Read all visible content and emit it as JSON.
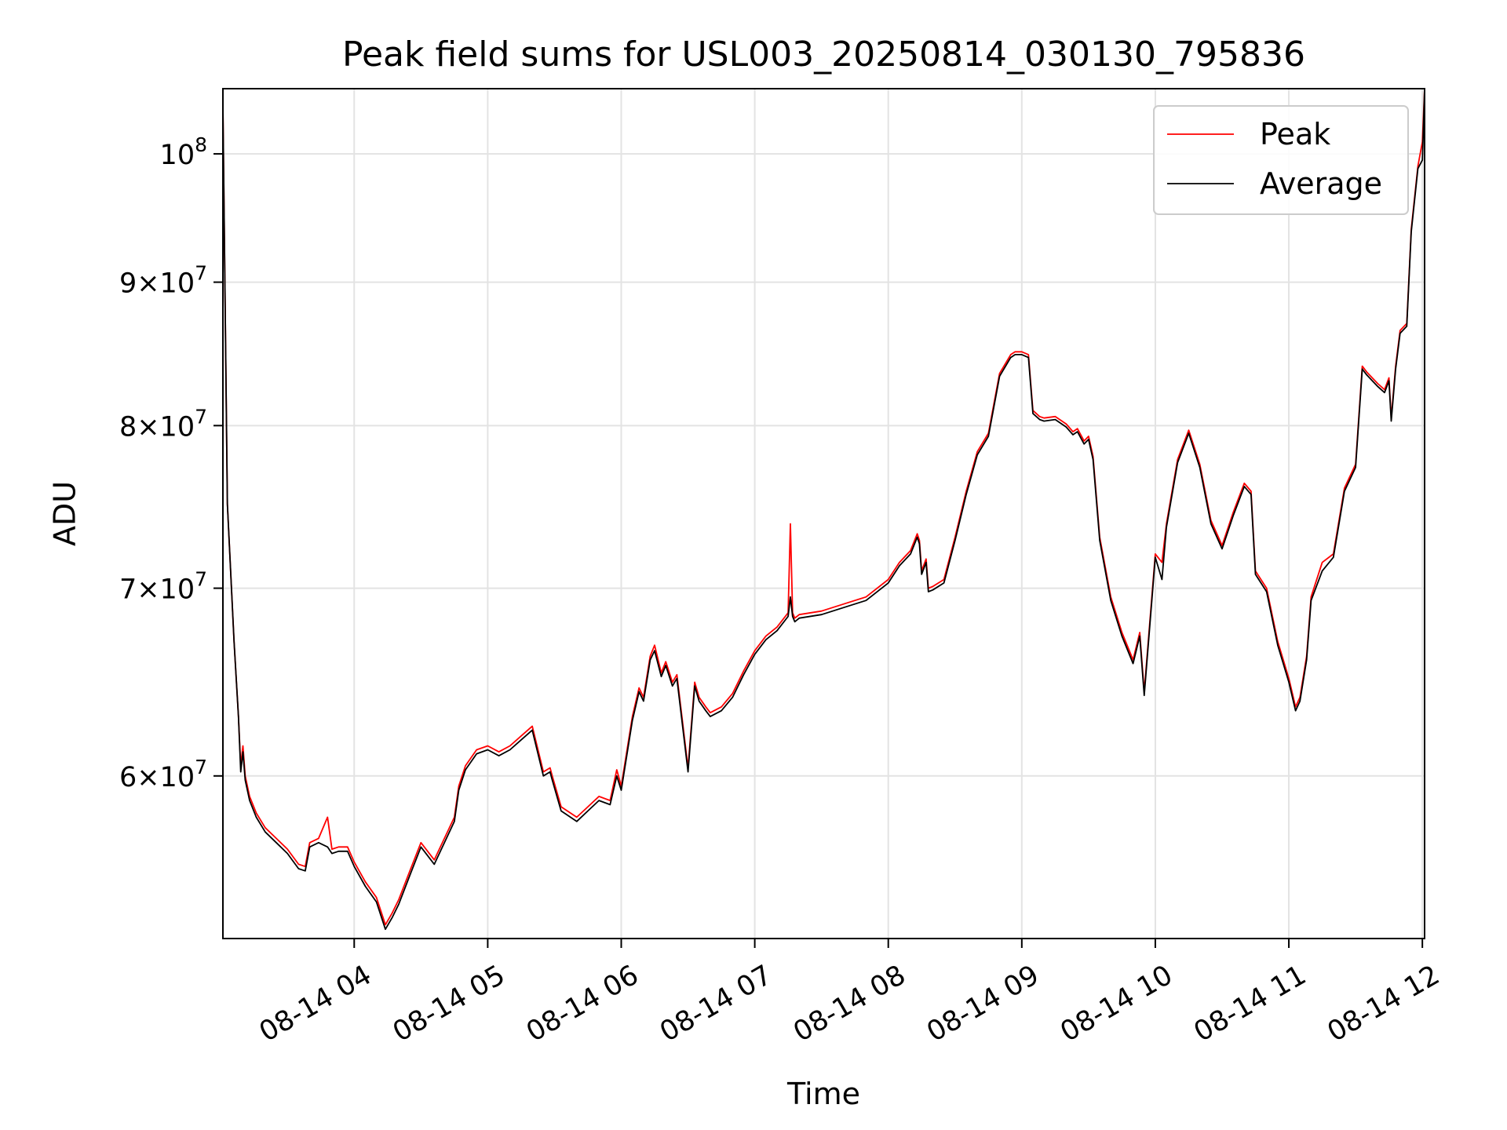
{
  "chart_data": {
    "type": "line",
    "title": "Peak field sums for USL003_20250814_030130_795836",
    "xlabel": "Time",
    "ylabel": "ADU",
    "yscale": "log",
    "grid": true,
    "legend_position": "top-right",
    "xlim": [
      "2025-08-14 03:01",
      "2025-08-14 12:01"
    ],
    "ylim": [
      52500000,
      105500000
    ],
    "x_ticks": [
      "08-14 04",
      "08-14 05",
      "08-14 06",
      "08-14 07",
      "08-14 08",
      "08-14 09",
      "08-14 10",
      "08-14 11",
      "08-14 12"
    ],
    "x_tick_values": [
      "2025-08-14 04:00",
      "2025-08-14 05:00",
      "2025-08-14 06:00",
      "2025-08-14 07:00",
      "2025-08-14 08:00",
      "2025-08-14 09:00",
      "2025-08-14 10:00",
      "2025-08-14 11:00",
      "2025-08-14 12:00"
    ],
    "y_ticks": [
      {
        "value": 60000000,
        "mant": "6",
        "sym": "×",
        "base": "10",
        "exp": "7"
      },
      {
        "value": 70000000,
        "mant": "7",
        "sym": "×",
        "base": "10",
        "exp": "7"
      },
      {
        "value": 80000000,
        "mant": "8",
        "sym": "×",
        "base": "10",
        "exp": "7"
      },
      {
        "value": 90000000,
        "mant": "9",
        "sym": "×",
        "base": "10",
        "exp": "7"
      },
      {
        "value": 100000000,
        "mant": "",
        "sym": "",
        "base": "10",
        "exp": "8"
      }
    ],
    "x": [
      "2025-08-14 03:01",
      "2025-08-14 03:03",
      "2025-08-14 03:06",
      "2025-08-14 03:08",
      "2025-08-14 03:09",
      "2025-08-14 03:10",
      "2025-08-14 03:11",
      "2025-08-14 03:13",
      "2025-08-14 03:16",
      "2025-08-14 03:20",
      "2025-08-14 03:25",
      "2025-08-14 03:30",
      "2025-08-14 03:35",
      "2025-08-14 03:38",
      "2025-08-14 03:40",
      "2025-08-14 03:44",
      "2025-08-14 03:48",
      "2025-08-14 03:50",
      "2025-08-14 03:53",
      "2025-08-14 03:57",
      "2025-08-14 04:00",
      "2025-08-14 04:05",
      "2025-08-14 04:10",
      "2025-08-14 04:14",
      "2025-08-14 04:17",
      "2025-08-14 04:20",
      "2025-08-14 04:25",
      "2025-08-14 04:30",
      "2025-08-14 04:36",
      "2025-08-14 04:45",
      "2025-08-14 04:47",
      "2025-08-14 04:50",
      "2025-08-14 04:55",
      "2025-08-14 05:00",
      "2025-08-14 05:05",
      "2025-08-14 05:10",
      "2025-08-14 05:15",
      "2025-08-14 05:20",
      "2025-08-14 05:25",
      "2025-08-14 05:28",
      "2025-08-14 05:29",
      "2025-08-14 05:33",
      "2025-08-14 05:40",
      "2025-08-14 05:45",
      "2025-08-14 05:50",
      "2025-08-14 05:55",
      "2025-08-14 05:58",
      "2025-08-14 06:00",
      "2025-08-14 06:05",
      "2025-08-14 06:08",
      "2025-08-14 06:10",
      "2025-08-14 06:13",
      "2025-08-14 06:15",
      "2025-08-14 06:18",
      "2025-08-14 06:20",
      "2025-08-14 06:23",
      "2025-08-14 06:25",
      "2025-08-14 06:30",
      "2025-08-14 06:33",
      "2025-08-14 06:35",
      "2025-08-14 06:38",
      "2025-08-14 06:40",
      "2025-08-14 06:45",
      "2025-08-14 06:50",
      "2025-08-14 06:55",
      "2025-08-14 07:00",
      "2025-08-14 07:05",
      "2025-08-14 07:10",
      "2025-08-14 07:15",
      "2025-08-14 07:16",
      "2025-08-14 07:17",
      "2025-08-14 07:18",
      "2025-08-14 07:20",
      "2025-08-14 07:30",
      "2025-08-14 07:40",
      "2025-08-14 07:50",
      "2025-08-14 08:00",
      "2025-08-14 08:05",
      "2025-08-14 08:10",
      "2025-08-14 08:13",
      "2025-08-14 08:14",
      "2025-08-14 08:15",
      "2025-08-14 08:17",
      "2025-08-14 08:18",
      "2025-08-14 08:20",
      "2025-08-14 08:25",
      "2025-08-14 08:30",
      "2025-08-14 08:35",
      "2025-08-14 08:40",
      "2025-08-14 08:45",
      "2025-08-14 08:50",
      "2025-08-14 08:55",
      "2025-08-14 08:57",
      "2025-08-14 09:00",
      "2025-08-14 09:03",
      "2025-08-14 09:05",
      "2025-08-14 09:08",
      "2025-08-14 09:10",
      "2025-08-14 09:15",
      "2025-08-14 09:20",
      "2025-08-14 09:23",
      "2025-08-14 09:25",
      "2025-08-14 09:28",
      "2025-08-14 09:30",
      "2025-08-14 09:32",
      "2025-08-14 09:35",
      "2025-08-14 09:40",
      "2025-08-14 09:45",
      "2025-08-14 09:50",
      "2025-08-14 09:53",
      "2025-08-14 09:55",
      "2025-08-14 10:00",
      "2025-08-14 10:03",
      "2025-08-14 10:05",
      "2025-08-14 10:10",
      "2025-08-14 10:15",
      "2025-08-14 10:20",
      "2025-08-14 10:25",
      "2025-08-14 10:30",
      "2025-08-14 10:35",
      "2025-08-14 10:40",
      "2025-08-14 10:43",
      "2025-08-14 10:45",
      "2025-08-14 10:50",
      "2025-08-14 10:55",
      "2025-08-14 11:00",
      "2025-08-14 11:03",
      "2025-08-14 11:05",
      "2025-08-14 11:08",
      "2025-08-14 11:10",
      "2025-08-14 11:15",
      "2025-08-14 11:20",
      "2025-08-14 11:25",
      "2025-08-14 11:30",
      "2025-08-14 11:33",
      "2025-08-14 11:35",
      "2025-08-14 11:40",
      "2025-08-14 11:43",
      "2025-08-14 11:45",
      "2025-08-14 11:46",
      "2025-08-14 11:48",
      "2025-08-14 11:50",
      "2025-08-14 11:53",
      "2025-08-14 11:55",
      "2025-08-14 11:58",
      "2025-08-14 12:00",
      "2025-08-14 12:01"
    ],
    "series": [
      {
        "name": "Peak",
        "color": "#ff0000",
        "values": [
          104000000,
          75000000,
          67000000,
          63000000,
          60500000,
          61500000,
          60000000,
          59000000,
          58200000,
          57500000,
          57000000,
          56500000,
          55800000,
          55700000,
          56800000,
          57000000,
          58000000,
          56500000,
          56600000,
          56600000,
          55900000,
          55000000,
          54300000,
          53100000,
          53600000,
          54200000,
          55500000,
          56800000,
          56000000,
          58000000,
          59500000,
          60500000,
          61300000,
          61500000,
          61200000,
          61500000,
          62000000,
          62500000,
          60200000,
          60400000,
          60000000,
          58500000,
          58000000,
          58500000,
          59000000,
          58800000,
          60300000,
          59500000,
          63000000,
          64500000,
          64000000,
          66200000,
          66800000,
          65300000,
          65900000,
          64800000,
          65200000,
          60400000,
          64800000,
          64000000,
          63500000,
          63200000,
          63500000,
          64200000,
          65400000,
          66500000,
          67300000,
          67800000,
          68600000,
          73800000,
          68600000,
          68300000,
          68500000,
          68700000,
          69100000,
          69500000,
          70500000,
          71500000,
          72200000,
          73200000,
          72800000,
          71000000,
          71700000,
          70000000,
          70100000,
          70500000,
          73000000,
          75800000,
          78300000,
          79500000,
          83500000,
          84800000,
          85000000,
          85000000,
          84800000,
          81000000,
          80600000,
          80500000,
          80600000,
          80100000,
          79600000,
          79800000,
          79000000,
          79300000,
          78000000,
          73000000,
          69500000,
          67500000,
          66000000,
          67500000,
          64300000,
          72000000,
          71500000,
          73800000,
          77800000,
          79700000,
          77500000,
          74000000,
          72500000,
          74500000,
          76300000,
          75800000,
          71000000,
          70000000,
          67000000,
          65000000,
          63500000,
          64000000,
          66200000,
          69500000,
          71500000,
          72000000,
          76000000,
          77500000,
          84000000,
          83600000,
          82800000,
          82400000,
          83200000,
          80500000,
          84000000,
          86500000,
          87000000,
          94000000,
          99000000,
          101000000,
          105500000
        ]
      },
      {
        "name": "Average",
        "color": "#000000",
        "values": [
          104000000,
          75000000,
          67000000,
          63000000,
          60200000,
          61200000,
          59800000,
          58800000,
          58000000,
          57300000,
          56800000,
          56300000,
          55600000,
          55500000,
          56600000,
          56800000,
          56600000,
          56300000,
          56400000,
          56400000,
          55700000,
          54800000,
          54100000,
          52900000,
          53400000,
          54000000,
          55300000,
          56600000,
          55800000,
          57800000,
          59300000,
          60300000,
          61100000,
          61300000,
          61000000,
          61300000,
          61800000,
          62300000,
          60000000,
          60200000,
          59800000,
          58300000,
          57800000,
          58300000,
          58800000,
          58600000,
          60000000,
          59300000,
          62800000,
          64300000,
          63800000,
          66000000,
          66500000,
          65100000,
          65700000,
          64600000,
          65000000,
          60200000,
          64600000,
          63800000,
          63300000,
          63000000,
          63300000,
          64000000,
          65200000,
          66300000,
          67100000,
          67600000,
          68400000,
          69500000,
          68400000,
          68100000,
          68300000,
          68500000,
          68900000,
          69300000,
          70300000,
          71300000,
          72000000,
          73000000,
          72600000,
          70800000,
          71500000,
          69800000,
          69900000,
          70300000,
          72800000,
          75600000,
          78100000,
          79300000,
          83300000,
          84600000,
          84800000,
          84800000,
          84600000,
          80800000,
          80400000,
          80300000,
          80400000,
          79900000,
          79400000,
          79600000,
          78800000,
          79100000,
          77800000,
          72800000,
          69300000,
          67300000,
          65800000,
          67300000,
          64100000,
          71800000,
          70500000,
          73600000,
          77600000,
          79500000,
          77300000,
          73800000,
          72300000,
          74300000,
          76100000,
          75600000,
          70800000,
          69800000,
          66800000,
          64800000,
          63300000,
          63800000,
          66000000,
          69300000,
          71000000,
          71800000,
          75800000,
          77300000,
          83800000,
          83400000,
          82600000,
          82200000,
          83000000,
          80300000,
          83800000,
          86300000,
          86800000,
          93800000,
          98800000,
          99500000,
          105500000
        ]
      }
    ]
  }
}
